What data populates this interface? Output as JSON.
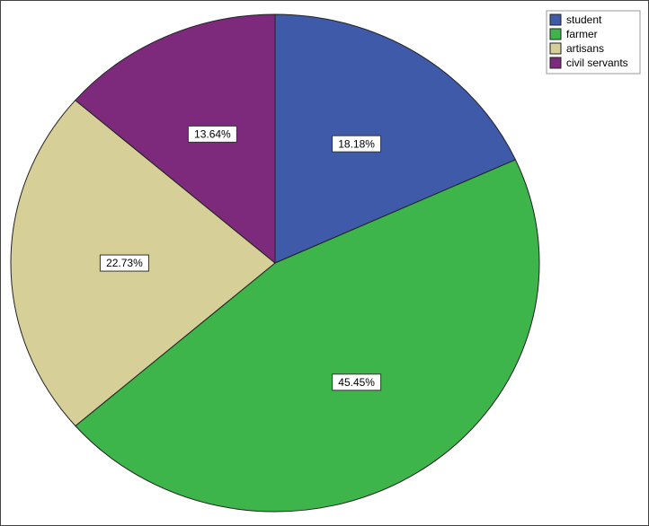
{
  "chart_data": {
    "type": "pie",
    "categories": [
      "student",
      "farmer",
      "artisans",
      "civil servants"
    ],
    "values": [
      18.18,
      45.45,
      22.73,
      13.64
    ],
    "value_labels": [
      "18.18%",
      "45.45%",
      "22.73%",
      "13.64%"
    ],
    "colors": [
      "#3f5aa9",
      "#3db54a",
      "#d6cf98",
      "#7d2a7d"
    ],
    "legend": "top-right"
  }
}
